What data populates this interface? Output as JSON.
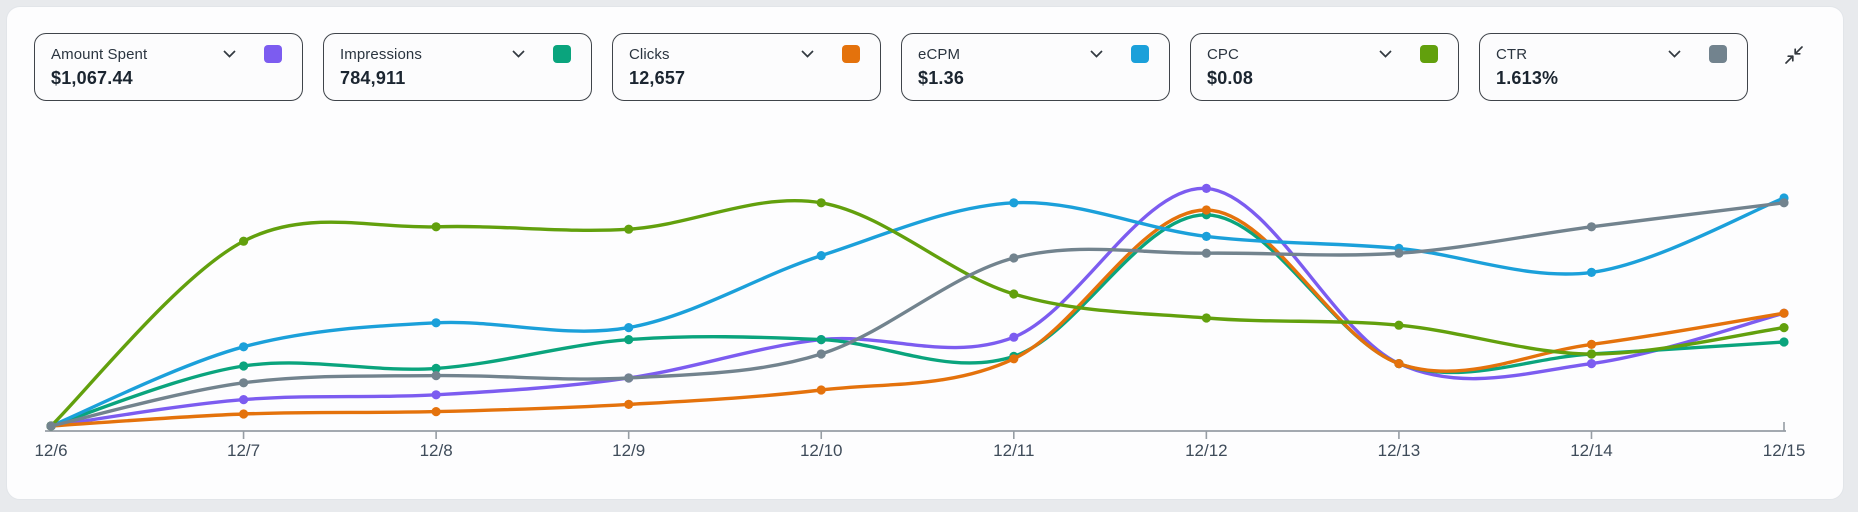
{
  "panel": {
    "name": "campaign-metrics-panel"
  },
  "cards": [
    {
      "label": "Amount Spent",
      "value": "$1,067.44",
      "color": "#7C5CF0"
    },
    {
      "label": "Impressions",
      "value": "784,911",
      "color": "#0AA47D"
    },
    {
      "label": "Clicks",
      "value": "12,657",
      "color": "#E4720C"
    },
    {
      "label": "eCPM",
      "value": "$1.36",
      "color": "#1BA0DA"
    },
    {
      "label": "CPC",
      "value": "$0.08",
      "color": "#62A00D"
    },
    {
      "label": "CTR",
      "value": "1.613%",
      "color": "#72838E"
    }
  ],
  "icons": {
    "card_dropdown": "chevron-down",
    "panel_toggle": "collapse-arrows"
  },
  "chart_data": {
    "type": "line",
    "x_categories": [
      "12/6",
      "12/7",
      "12/8",
      "12/9",
      "12/10",
      "12/11",
      "12/12",
      "12/13",
      "12/14",
      "12/15"
    ],
    "y_axis": "hidden — each series normalized to its own range (0–100 of plot height)",
    "grid": false,
    "legend_position": "metric cards above act as legend",
    "series": [
      {
        "name": "Amount Spent",
        "color": "#7C5CF0",
        "values": [
          0,
          11,
          13,
          20,
          36,
          37,
          99,
          26,
          26,
          47
        ]
      },
      {
        "name": "Impressions",
        "color": "#0AA47D",
        "values": [
          0,
          25,
          24,
          36,
          36,
          29,
          88,
          26,
          30,
          35
        ]
      },
      {
        "name": "Clicks",
        "color": "#E4720C",
        "values": [
          0,
          5,
          6,
          9,
          15,
          28,
          90,
          26,
          34,
          47
        ]
      },
      {
        "name": "eCPM",
        "color": "#1BA0DA",
        "values": [
          0,
          33,
          43,
          41,
          71,
          93,
          79,
          74,
          64,
          95
        ]
      },
      {
        "name": "CPC",
        "color": "#62A00D",
        "values": [
          0,
          77,
          83,
          82,
          93,
          55,
          45,
          42,
          30,
          41
        ]
      },
      {
        "name": "CTR",
        "color": "#72838E",
        "values": [
          0,
          18,
          21,
          20,
          30,
          70,
          72,
          72,
          83,
          93
        ]
      }
    ],
    "axis_color": "#969da4",
    "label_color": "#3f4c5a"
  }
}
